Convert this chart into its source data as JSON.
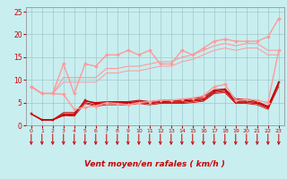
{
  "background_color": "#c8eef0",
  "grid_color": "#a0c8cc",
  "xlabel": "Vent moyen/en rafales ( km/h )",
  "xlabel_color": "#cc0000",
  "tick_color": "#cc0000",
  "arrow_color": "#cc0000",
  "xlim": [
    -0.5,
    23.5
  ],
  "ylim": [
    0,
    26
  ],
  "yticks": [
    0,
    5,
    10,
    15,
    20,
    25
  ],
  "xticks": [
    0,
    1,
    2,
    3,
    4,
    5,
    6,
    7,
    8,
    9,
    10,
    11,
    12,
    13,
    14,
    15,
    16,
    17,
    18,
    19,
    20,
    21,
    22,
    23
  ],
  "series": [
    {
      "x": [
        0,
        1,
        2,
        3,
        4,
        5,
        6,
        7,
        8,
        9,
        10,
        11,
        12,
        13,
        14,
        15,
        16,
        17,
        18,
        19,
        20,
        21,
        22,
        23
      ],
      "y": [
        2.5,
        1.2,
        1.2,
        2.2,
        2.3,
        5.5,
        4.8,
        5.0,
        5.0,
        5.0,
        5.2,
        5.0,
        5.2,
        5.3,
        5.3,
        5.5,
        5.8,
        7.5,
        7.8,
        5.3,
        5.3,
        5.0,
        4.0,
        9.5
      ],
      "color": "#cc0000",
      "lw": 1.0,
      "marker": "s",
      "ms": 2.0
    },
    {
      "x": [
        0,
        1,
        2,
        3,
        4,
        5,
        6,
        7,
        8,
        9,
        10,
        11,
        12,
        13,
        14,
        15,
        16,
        17,
        18,
        19,
        20,
        21,
        22,
        23
      ],
      "y": [
        2.5,
        1.2,
        1.2,
        2.5,
        2.5,
        5.3,
        5.0,
        5.2,
        5.2,
        5.2,
        5.5,
        5.2,
        5.5,
        5.5,
        5.5,
        5.8,
        6.2,
        7.8,
        8.0,
        5.8,
        5.8,
        5.2,
        4.2,
        9.5
      ],
      "color": "#cc0000",
      "lw": 0.8,
      "marker": null,
      "ms": 0
    },
    {
      "x": [
        0,
        1,
        2,
        3,
        4,
        5,
        6,
        7,
        8,
        9,
        10,
        11,
        12,
        13,
        14,
        15,
        16,
        17,
        18,
        19,
        20,
        21,
        22,
        23
      ],
      "y": [
        2.5,
        1.2,
        1.2,
        2.8,
        2.8,
        5.0,
        4.5,
        4.8,
        4.8,
        4.8,
        5.0,
        4.8,
        5.0,
        5.0,
        5.0,
        5.3,
        5.5,
        7.2,
        7.5,
        5.0,
        5.0,
        4.8,
        3.8,
        9.0
      ],
      "color": "#cc0000",
      "lw": 0.7,
      "marker": null,
      "ms": 0
    },
    {
      "x": [
        0,
        1,
        2,
        3,
        4,
        5,
        6,
        7,
        8,
        9,
        10,
        11,
        12,
        13,
        14,
        15,
        16,
        17,
        18,
        19,
        20,
        21,
        22,
        23
      ],
      "y": [
        2.5,
        1.2,
        1.2,
        2.2,
        2.0,
        4.8,
        4.2,
        4.5,
        4.5,
        4.5,
        4.8,
        4.5,
        4.8,
        4.8,
        4.8,
        5.0,
        5.3,
        7.0,
        7.2,
        4.8,
        4.8,
        4.5,
        3.5,
        8.5
      ],
      "color": "#cc0000",
      "lw": 0.6,
      "marker": null,
      "ms": 0
    },
    {
      "x": [
        0,
        1,
        2,
        3,
        4,
        5,
        6,
        7,
        8,
        9,
        10,
        11,
        12,
        13,
        14,
        15,
        16,
        17,
        18,
        19,
        20,
        21,
        22,
        23
      ],
      "y": [
        8.5,
        7.0,
        7.0,
        6.8,
        3.5,
        4.0,
        4.2,
        5.0,
        4.8,
        4.5,
        5.0,
        5.2,
        5.5,
        5.5,
        5.8,
        6.0,
        6.5,
        8.5,
        9.0,
        5.5,
        5.8,
        5.5,
        5.0,
        16.5
      ],
      "color": "#ff9999",
      "lw": 1.0,
      "marker": "D",
      "ms": 2.0
    },
    {
      "x": [
        0,
        1,
        2,
        3,
        4,
        5,
        6,
        7,
        8,
        9,
        10,
        11,
        12,
        13,
        14,
        15,
        16,
        17,
        18,
        19,
        20,
        21,
        22,
        23
      ],
      "y": [
        8.5,
        7.0,
        7.0,
        13.5,
        7.0,
        13.5,
        13.0,
        15.5,
        15.5,
        16.5,
        15.5,
        16.5,
        13.5,
        13.5,
        16.5,
        15.5,
        17.0,
        18.5,
        19.0,
        18.5,
        18.5,
        18.5,
        19.5,
        23.5
      ],
      "color": "#ff9999",
      "lw": 1.0,
      "marker": "D",
      "ms": 2.0
    },
    {
      "x": [
        0,
        1,
        2,
        3,
        4,
        5,
        6,
        7,
        8,
        9,
        10,
        11,
        12,
        13,
        14,
        15,
        16,
        17,
        18,
        19,
        20,
        21,
        22,
        23
      ],
      "y": [
        8.5,
        7.0,
        7.0,
        10.5,
        10.5,
        10.5,
        10.5,
        12.5,
        12.5,
        13.0,
        13.0,
        13.5,
        14.0,
        14.0,
        15.0,
        15.5,
        16.5,
        17.5,
        18.0,
        17.5,
        18.0,
        18.0,
        16.5,
        16.5
      ],
      "color": "#ff9999",
      "lw": 0.8,
      "marker": null,
      "ms": 0
    },
    {
      "x": [
        0,
        1,
        2,
        3,
        4,
        5,
        6,
        7,
        8,
        9,
        10,
        11,
        12,
        13,
        14,
        15,
        16,
        17,
        18,
        19,
        20,
        21,
        22,
        23
      ],
      "y": [
        8.5,
        7.0,
        7.0,
        9.5,
        9.5,
        9.5,
        9.5,
        11.5,
        11.5,
        12.0,
        12.0,
        12.5,
        13.0,
        13.0,
        14.0,
        14.5,
        15.5,
        16.5,
        17.0,
        16.5,
        17.0,
        17.0,
        15.5,
        15.5
      ],
      "color": "#ff9999",
      "lw": 0.7,
      "marker": null,
      "ms": 0
    }
  ]
}
